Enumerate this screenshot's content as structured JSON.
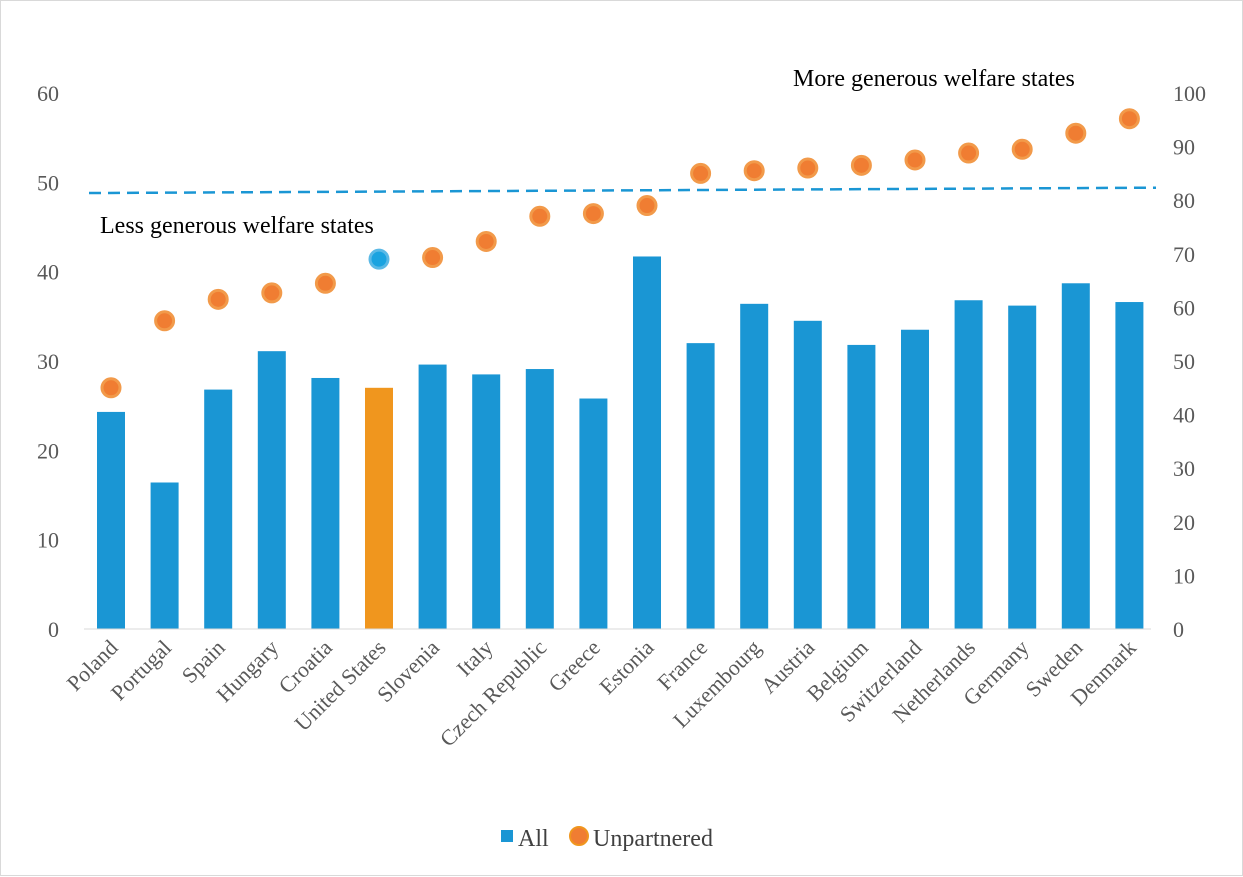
{
  "chart_data": {
    "type": "bar",
    "categories": [
      "Poland",
      "Portugal",
      "Spain",
      "Hungary",
      "Croatia",
      "United States",
      "Slovenia",
      "Italy",
      "Czech Republic",
      "Greece",
      "Estonia",
      "France",
      "Luxembourg",
      "Austria",
      "Belgium",
      "Switzerland",
      "Netherlands",
      "Germany",
      "Sweden",
      "Denmark"
    ],
    "series": [
      {
        "name": "All",
        "type": "bar",
        "axis": "left",
        "color": "#1a96d4",
        "highlight": {
          "category": "United States",
          "color": "#f0961e"
        },
        "values": [
          24.3,
          16.4,
          26.8,
          31.1,
          28.1,
          27.0,
          29.6,
          28.5,
          29.1,
          25.8,
          41.7,
          32.0,
          36.4,
          34.5,
          31.8,
          33.5,
          36.8,
          36.2,
          38.7,
          36.6
        ]
      },
      {
        "name": "Unpartnered",
        "type": "scatter",
        "axis": "right",
        "color": "#f07d32",
        "highlight": {
          "category": "United States",
          "color": "#1aa3e0"
        },
        "values": [
          45,
          57.5,
          61.5,
          62.7,
          64.5,
          69,
          69.3,
          72.3,
          77,
          77.5,
          79,
          85,
          85.5,
          86,
          86.5,
          87.5,
          88.8,
          89.5,
          92.5,
          95.2
        ]
      }
    ],
    "y_left": {
      "min": 0,
      "max": 60,
      "ticks": [
        "0",
        "10",
        "20",
        "30",
        "40",
        "50",
        "60"
      ]
    },
    "y_right": {
      "min": 0,
      "max": 100,
      "ticks": [
        "0",
        "10",
        "20",
        "30",
        "40",
        "50",
        "60",
        "70",
        "80",
        "90",
        "100"
      ]
    },
    "threshold_line": {
      "axis": "left",
      "start": 48.8,
      "end": 49.4,
      "color": "#1a96d4",
      "style": "dashed"
    },
    "annotations": {
      "upper": "More generous welfare states",
      "lower": "Less generous welfare states"
    },
    "legend": {
      "position": "bottom",
      "items": [
        "All",
        "Unpartnered"
      ]
    },
    "grid": false
  }
}
